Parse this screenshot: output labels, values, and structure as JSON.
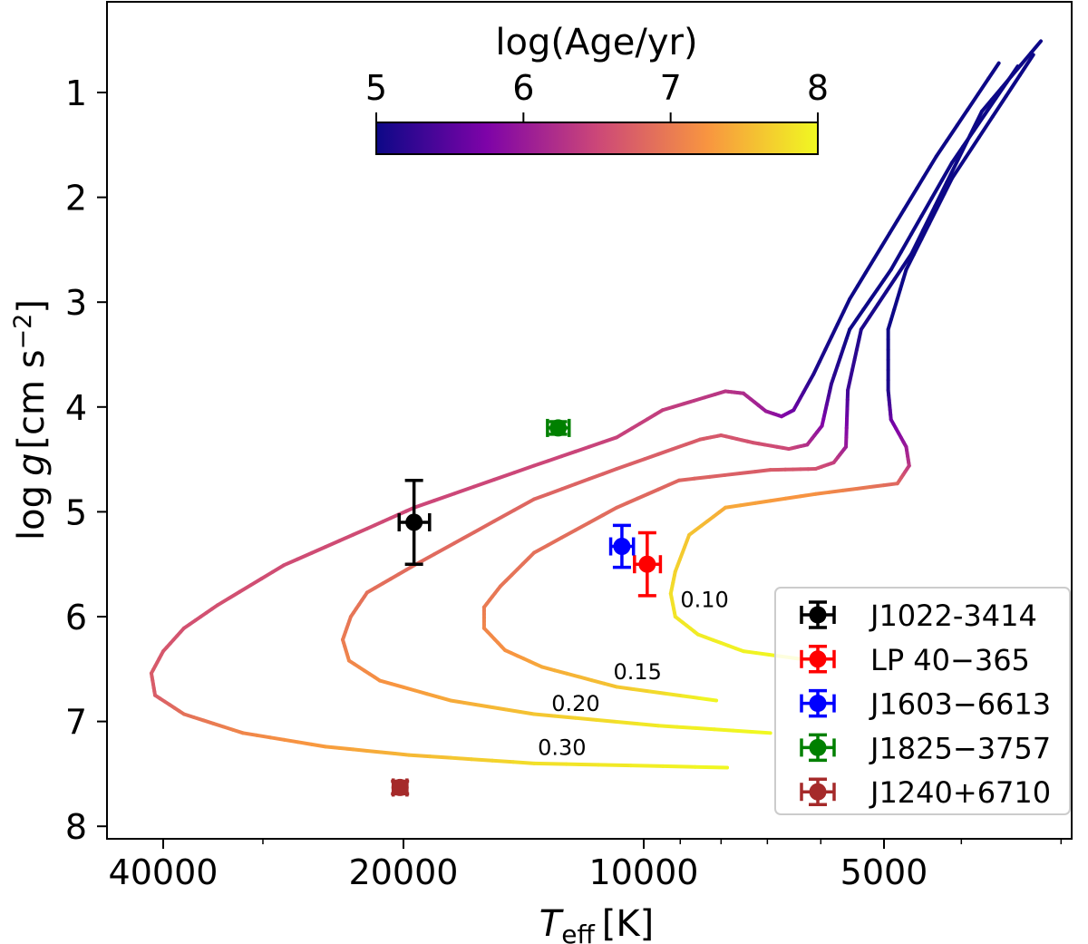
{
  "chart_data": {
    "type": "line",
    "xlabel": "T_eff [K]",
    "xlabel_main": "T",
    "xlabel_sub": "eff",
    "xlabel_unit": "[K]",
    "ylabel": "log g [cm s^-2]",
    "ylabel_parts": {
      "log": "log",
      "g": "g",
      "unit": "[cm s",
      "exp": "−2",
      "close": "]"
    },
    "x_scale": "log",
    "x_inverted": true,
    "y_inverted": true,
    "xlim": [
      47000,
      2900
    ],
    "ylim": [
      8.12,
      0.13
    ],
    "x_ticks": [
      40000,
      20000,
      10000,
      5000
    ],
    "x_tick_labels": [
      "40000",
      "20000",
      "10000",
      "5000"
    ],
    "x_minor_ticks": [
      30000,
      9000,
      8000,
      7000,
      6000,
      4000,
      3000
    ],
    "y_ticks": [
      1,
      2,
      3,
      4,
      5,
      6,
      7,
      8
    ],
    "y_tick_labels": [
      "1",
      "2",
      "3",
      "4",
      "5",
      "6",
      "7",
      "8"
    ],
    "grid": false,
    "colorbar": {
      "label": "log(Age/yr)",
      "colormap": "plasma",
      "range": [
        5,
        8
      ],
      "ticks": [
        5,
        6,
        7,
        8
      ],
      "tick_labels": [
        "5",
        "6",
        "7",
        "8"
      ],
      "placement": "top-center"
    },
    "tracks": [
      {
        "label": "0.30",
        "label_at": [
          12660,
          7.24
        ],
        "points": [
          [
            3590,
            0.72,
            5.0
          ],
          [
            4300,
            1.61,
            5.0
          ],
          [
            4810,
            2.22,
            5.0
          ],
          [
            5520,
            2.97,
            5.0
          ],
          [
            6130,
            3.69,
            5.1
          ],
          [
            6490,
            4.03,
            5.6
          ],
          [
            6720,
            4.09,
            5.8
          ],
          [
            7030,
            4.04,
            6.0
          ],
          [
            7500,
            3.87,
            6.2
          ],
          [
            7900,
            3.85,
            6.3
          ],
          [
            9470,
            4.03,
            6.4
          ],
          [
            10810,
            4.29,
            6.45
          ],
          [
            13720,
            4.56,
            6.5
          ],
          [
            19390,
            4.96,
            6.5
          ],
          [
            22210,
            5.16,
            6.55
          ],
          [
            28250,
            5.51,
            6.55
          ],
          [
            34190,
            5.89,
            6.6
          ],
          [
            37670,
            6.11,
            6.6
          ],
          [
            40000,
            6.33,
            6.65
          ],
          [
            41390,
            6.54,
            6.7
          ],
          [
            40950,
            6.75,
            6.7
          ],
          [
            37670,
            6.93,
            6.9
          ],
          [
            31780,
            7.11,
            7.1
          ],
          [
            25050,
            7.24,
            7.3
          ],
          [
            19690,
            7.32,
            7.5
          ],
          [
            13720,
            7.4,
            7.8
          ],
          [
            7860,
            7.44,
            8.0
          ]
        ]
      },
      {
        "label": "0.20",
        "label_at": [
          12170,
          6.82
        ],
        "points": [
          [
            3400,
            0.75,
            5.0
          ],
          [
            4110,
            1.67,
            5.0
          ],
          [
            4900,
            2.69,
            5.0
          ],
          [
            5520,
            3.26,
            5.0
          ],
          [
            5820,
            3.78,
            5.2
          ],
          [
            5980,
            4.18,
            5.8
          ],
          [
            6240,
            4.36,
            6.2
          ],
          [
            6580,
            4.4,
            6.5
          ],
          [
            7300,
            4.34,
            6.6
          ],
          [
            8000,
            4.27,
            6.65
          ],
          [
            8500,
            4.31,
            6.7
          ],
          [
            10810,
            4.59,
            6.75
          ],
          [
            13720,
            4.88,
            6.8
          ],
          [
            19390,
            5.51,
            6.85
          ],
          [
            22210,
            5.77,
            6.9
          ],
          [
            23280,
            6.0,
            6.95
          ],
          [
            23830,
            6.22,
            7.0
          ],
          [
            23400,
            6.42,
            7.1
          ],
          [
            21410,
            6.61,
            7.2
          ],
          [
            17460,
            6.8,
            7.4
          ],
          [
            13720,
            6.93,
            7.6
          ],
          [
            9590,
            7.04,
            7.9
          ],
          [
            6940,
            7.11,
            8.0
          ]
        ]
      },
      {
        "label": "0.15",
        "label_at": [
          10180,
          6.52
        ],
        "points": [
          [
            3180,
            0.51,
            5.0
          ],
          [
            3770,
            1.18,
            5.0
          ],
          [
            4620,
            2.54,
            5.0
          ],
          [
            5340,
            3.26,
            5.1
          ],
          [
            5550,
            3.84,
            5.3
          ],
          [
            5580,
            4.38,
            6.0
          ],
          [
            5780,
            4.53,
            6.4
          ],
          [
            6090,
            4.59,
            6.6
          ],
          [
            6940,
            4.6,
            6.7
          ],
          [
            9030,
            4.7,
            6.8
          ],
          [
            10810,
            4.96,
            6.85
          ],
          [
            13720,
            5.39,
            6.9
          ],
          [
            15120,
            5.71,
            6.95
          ],
          [
            15850,
            5.91,
            7.0
          ],
          [
            15850,
            6.11,
            7.1
          ],
          [
            14920,
            6.32,
            7.2
          ],
          [
            13410,
            6.48,
            7.4
          ],
          [
            10810,
            6.67,
            7.6
          ],
          [
            8110,
            6.8,
            8.0
          ]
        ]
      },
      {
        "label": "0.10",
        "label_at": [
          8390,
          5.83
        ],
        "points": [
          [
            3250,
            0.64,
            5.0
          ],
          [
            4110,
            1.82,
            5.0
          ],
          [
            4690,
            2.69,
            5.0
          ],
          [
            4940,
            3.26,
            5.0
          ],
          [
            4940,
            3.84,
            5.1
          ],
          [
            4900,
            4.12,
            5.6
          ],
          [
            4690,
            4.38,
            6.0
          ],
          [
            4650,
            4.56,
            6.3
          ],
          [
            4810,
            4.73,
            6.8
          ],
          [
            6090,
            4.83,
            7.2
          ],
          [
            7900,
            4.96,
            7.4
          ],
          [
            8770,
            5.22,
            7.6
          ],
          [
            9130,
            5.57,
            7.7
          ],
          [
            9250,
            5.78,
            7.8
          ],
          [
            9130,
            6.0,
            7.85
          ],
          [
            8550,
            6.17,
            7.9
          ],
          [
            7500,
            6.33,
            7.95
          ],
          [
            6000,
            6.43,
            8.0
          ]
        ]
      }
    ],
    "series": [
      {
        "name": "J1022-3414",
        "color": "#000000",
        "teff": 19400,
        "teff_err": 850,
        "logg": 5.1,
        "logg_err": 0.4
      },
      {
        "name": "LP 40−365",
        "color": "#ff0000",
        "teff": 9900,
        "teff_err": 370,
        "logg": 5.5,
        "logg_err": 0.3
      },
      {
        "name": "J1603−6613",
        "color": "#0000ff",
        "teff": 10650,
        "teff_err": 350,
        "logg": 5.33,
        "logg_err": 0.2
      },
      {
        "name": "J1825−3757",
        "color": "#008000",
        "teff": 12800,
        "teff_err": 400,
        "logg": 4.2,
        "logg_err": 0.06
      },
      {
        "name": "J1240+6710",
        "color": "#a52a2a",
        "teff": 20200,
        "teff_err": 400,
        "logg": 7.63,
        "logg_err": 0.06
      }
    ],
    "legend_placement": "lower-right"
  }
}
